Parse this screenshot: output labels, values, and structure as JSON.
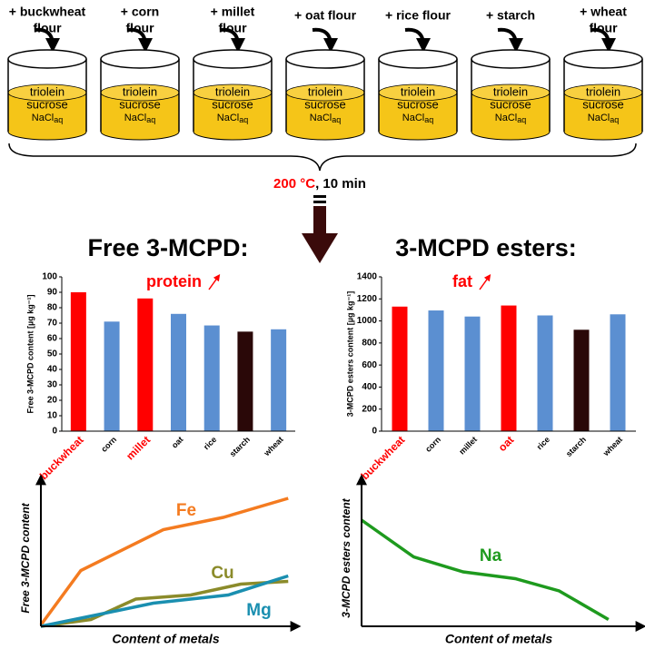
{
  "diagram": {
    "beakers": [
      {
        "label": [
          "+ buckwheat",
          "flour"
        ]
      },
      {
        "label": [
          "+ corn",
          "flour"
        ]
      },
      {
        "label": [
          "+ millet",
          "flour"
        ]
      },
      {
        "label": [
          "+ oat flour"
        ]
      },
      {
        "label": [
          "+ rice flour"
        ]
      },
      {
        "label": [
          "+ starch"
        ]
      },
      {
        "label": [
          "+ wheat",
          "flour"
        ]
      }
    ],
    "contents": [
      "triolein",
      "sucrose",
      "NaCl",
      "aq"
    ],
    "condition": {
      "temperature": "200 °C",
      "time": ", 10 min"
    }
  },
  "chart_data": [
    {
      "type": "bar",
      "title": "Free 3-MCPD:",
      "ylabel": "Free 3-MCPD content [µg kg⁻¹]",
      "annotation": "protein",
      "categories": [
        "buckwheat",
        "corn",
        "millet",
        "oat",
        "rice",
        "starch",
        "wheat"
      ],
      "values": [
        90,
        71,
        86,
        76,
        68.5,
        64.5,
        66
      ],
      "colors": [
        "#ff0000",
        "#5b8fd1",
        "#ff0000",
        "#5b8fd1",
        "#5b8fd1",
        "#2a0808",
        "#5b8fd1"
      ],
      "label_colors": [
        "#ff0000",
        "#000000",
        "#ff0000",
        "#000000",
        "#000000",
        "#000000",
        "#000000"
      ],
      "ylim": [
        0,
        100
      ],
      "yticks": [
        0,
        10,
        20,
        30,
        40,
        50,
        60,
        70,
        80,
        90,
        100
      ]
    },
    {
      "type": "bar",
      "title": "3-MCPD esters:",
      "ylabel": "3-MCPD esters content [µg kg⁻¹]",
      "annotation": "fat",
      "categories": [
        "buckwheat",
        "corn",
        "millet",
        "oat",
        "rice",
        "starch",
        "wheat"
      ],
      "values": [
        1130,
        1095,
        1040,
        1140,
        1050,
        920,
        1060
      ],
      "colors": [
        "#ff0000",
        "#5b8fd1",
        "#5b8fd1",
        "#ff0000",
        "#5b8fd1",
        "#2a0808",
        "#5b8fd1"
      ],
      "label_colors": [
        "#ff0000",
        "#000000",
        "#000000",
        "#ff0000",
        "#000000",
        "#000000",
        "#000000"
      ],
      "ylim": [
        0,
        1400
      ],
      "yticks": [
        0,
        200,
        400,
        600,
        800,
        1000,
        1200,
        1400
      ]
    },
    {
      "type": "line",
      "xlabel": "Content of metals",
      "ylabel": "Free 3-MCPD content",
      "xlim": [
        0,
        10
      ],
      "ylim": [
        0,
        10
      ],
      "series": [
        {
          "name": "Fe",
          "color": "#f47b20",
          "x": [
            0,
            1.6,
            4.9,
            7.3,
            9.9
          ],
          "values": [
            0.1,
            4.1,
            7.1,
            8.0,
            9.4
          ]
        },
        {
          "name": "Cu",
          "color": "#8b8b2a",
          "x": [
            0,
            2,
            3.8,
            6,
            8,
            9.9
          ],
          "values": [
            0,
            0.5,
            2,
            2.3,
            3.1,
            3.3
          ]
        },
        {
          "name": "Mg",
          "color": "#1a8fb0",
          "x": [
            0,
            2.4,
            4.5,
            7.5,
            9.9
          ],
          "values": [
            0,
            0.9,
            1.7,
            2.3,
            3.7
          ]
        }
      ]
    },
    {
      "type": "line",
      "xlabel": "Content of metals",
      "ylabel": "3-MCPD esters content",
      "xlim": [
        0,
        10
      ],
      "ylim": [
        0,
        10
      ],
      "series": [
        {
          "name": "Na",
          "color": "#1e9a1e",
          "x": [
            0,
            1.9,
            3.7,
            5.6,
            7.2,
            9.0
          ],
          "values": [
            7.8,
            5.1,
            4.0,
            3.5,
            2.6,
            0.5
          ]
        }
      ]
    }
  ]
}
